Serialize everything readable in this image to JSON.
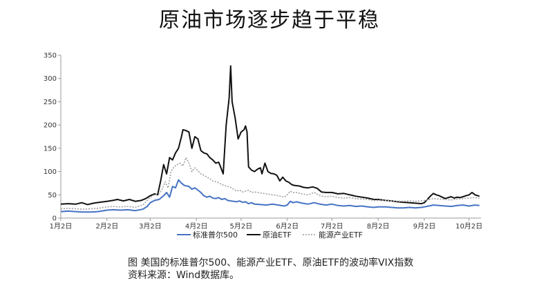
{
  "title": "原油市场逐步趋于平稳",
  "caption": {
    "line1": "图 美国的标准普尔500、能源产业ETF、原油ETF的波动率VIX指数",
    "line2": "资料来源：Wind数据库。"
  },
  "colors": {
    "sp500": "#4472C4",
    "oil": "#111111",
    "energy": "#A6A6A6",
    "axis": "#999999"
  },
  "chart_data": {
    "type": "line",
    "title": "",
    "xlabel": "",
    "ylabel": "",
    "xlim": [
      0,
      282
    ],
    "ylim": [
      0,
      350
    ],
    "yticks": [
      0,
      50,
      100,
      150,
      200,
      250,
      300,
      350
    ],
    "xticks": [
      {
        "pos": 0,
        "label": "1月2日"
      },
      {
        "pos": 31,
        "label": "2月2日"
      },
      {
        "pos": 60,
        "label": "3月2日"
      },
      {
        "pos": 91,
        "label": "4月2日"
      },
      {
        "pos": 121,
        "label": "5月2日"
      },
      {
        "pos": 152,
        "label": "6月2日"
      },
      {
        "pos": 182,
        "label": "7月2日"
      },
      {
        "pos": 213,
        "label": "8月2日"
      },
      {
        "pos": 244,
        "label": "9月2日"
      },
      {
        "pos": 274,
        "label": "10月2日"
      }
    ],
    "legend_position": "bottom",
    "grid": false,
    "series": [
      {
        "name": "标准普尔500",
        "style": "solid",
        "points": [
          [
            0,
            14
          ],
          [
            5,
            15
          ],
          [
            10,
            14
          ],
          [
            15,
            13
          ],
          [
            20,
            13
          ],
          [
            25,
            14
          ],
          [
            31,
            17
          ],
          [
            35,
            18
          ],
          [
            40,
            17
          ],
          [
            45,
            18
          ],
          [
            50,
            16
          ],
          [
            55,
            19
          ],
          [
            58,
            25
          ],
          [
            60,
            33
          ],
          [
            63,
            38
          ],
          [
            66,
            40
          ],
          [
            69,
            48
          ],
          [
            71,
            55
          ],
          [
            73,
            45
          ],
          [
            75,
            68
          ],
          [
            77,
            65
          ],
          [
            79,
            82
          ],
          [
            81,
            75
          ],
          [
            83,
            70
          ],
          [
            86,
            68
          ],
          [
            88,
            62
          ],
          [
            90,
            65
          ],
          [
            92,
            60
          ],
          [
            94,
            55
          ],
          [
            96,
            48
          ],
          [
            98,
            45
          ],
          [
            100,
            47
          ],
          [
            102,
            43
          ],
          [
            104,
            42
          ],
          [
            106,
            44
          ],
          [
            108,
            40
          ],
          [
            110,
            42
          ],
          [
            112,
            38
          ],
          [
            114,
            37
          ],
          [
            116,
            36
          ],
          [
            118,
            35
          ],
          [
            120,
            37
          ],
          [
            122,
            34
          ],
          [
            124,
            35
          ],
          [
            126,
            31
          ],
          [
            128,
            33
          ],
          [
            130,
            30
          ],
          [
            134,
            29
          ],
          [
            138,
            28
          ],
          [
            142,
            30
          ],
          [
            146,
            28
          ],
          [
            150,
            26
          ],
          [
            152,
            28
          ],
          [
            154,
            36
          ],
          [
            156,
            33
          ],
          [
            158,
            35
          ],
          [
            162,
            32
          ],
          [
            166,
            30
          ],
          [
            170,
            33
          ],
          [
            174,
            30
          ],
          [
            178,
            28
          ],
          [
            182,
            30
          ],
          [
            186,
            27
          ],
          [
            190,
            26
          ],
          [
            194,
            27
          ],
          [
            198,
            25
          ],
          [
            202,
            26
          ],
          [
            206,
            24
          ],
          [
            210,
            23
          ],
          [
            213,
            24
          ],
          [
            218,
            24
          ],
          [
            222,
            23
          ],
          [
            226,
            22
          ],
          [
            230,
            22
          ],
          [
            234,
            23
          ],
          [
            238,
            22
          ],
          [
            242,
            23
          ],
          [
            244,
            24
          ],
          [
            247,
            26
          ],
          [
            250,
            28
          ],
          [
            254,
            27
          ],
          [
            258,
            26
          ],
          [
            262,
            25
          ],
          [
            266,
            27
          ],
          [
            270,
            28
          ],
          [
            274,
            26
          ],
          [
            278,
            28
          ],
          [
            281,
            27
          ]
        ]
      },
      {
        "name": "原油ETF",
        "style": "solid",
        "points": [
          [
            0,
            30
          ],
          [
            5,
            31
          ],
          [
            10,
            30
          ],
          [
            14,
            33
          ],
          [
            18,
            29
          ],
          [
            22,
            32
          ],
          [
            26,
            34
          ],
          [
            31,
            36
          ],
          [
            35,
            38
          ],
          [
            38,
            40
          ],
          [
            42,
            37
          ],
          [
            46,
            40
          ],
          [
            50,
            36
          ],
          [
            54,
            38
          ],
          [
            57,
            42
          ],
          [
            60,
            48
          ],
          [
            63,
            52
          ],
          [
            65,
            50
          ],
          [
            67,
            80
          ],
          [
            69,
            115
          ],
          [
            71,
            95
          ],
          [
            73,
            130
          ],
          [
            75,
            125
          ],
          [
            77,
            140
          ],
          [
            79,
            150
          ],
          [
            81,
            175
          ],
          [
            82,
            190
          ],
          [
            84,
            188
          ],
          [
            86,
            185
          ],
          [
            88,
            150
          ],
          [
            90,
            175
          ],
          [
            92,
            170
          ],
          [
            94,
            145
          ],
          [
            96,
            140
          ],
          [
            98,
            138
          ],
          [
            100,
            130
          ],
          [
            102,
            125
          ],
          [
            104,
            118
          ],
          [
            106,
            120
          ],
          [
            107,
            112
          ],
          [
            109,
            95
          ],
          [
            111,
            200
          ],
          [
            113,
            258
          ],
          [
            114,
            327
          ],
          [
            115,
            250
          ],
          [
            117,
            215
          ],
          [
            119,
            170
          ],
          [
            121,
            185
          ],
          [
            123,
            190
          ],
          [
            124,
            198
          ],
          [
            125,
            185
          ],
          [
            126,
            110
          ],
          [
            128,
            103
          ],
          [
            130,
            100
          ],
          [
            132,
            105
          ],
          [
            134,
            108
          ],
          [
            135,
            95
          ],
          [
            137,
            118
          ],
          [
            139,
            100
          ],
          [
            141,
            96
          ],
          [
            143,
            95
          ],
          [
            145,
            92
          ],
          [
            147,
            80
          ],
          [
            149,
            88
          ],
          [
            151,
            80
          ],
          [
            153,
            77
          ],
          [
            155,
            72
          ],
          [
            157,
            70
          ],
          [
            160,
            69
          ],
          [
            163,
            66
          ],
          [
            166,
            65
          ],
          [
            169,
            67
          ],
          [
            172,
            64
          ],
          [
            175,
            56
          ],
          [
            178,
            55
          ],
          [
            182,
            55
          ],
          [
            186,
            52
          ],
          [
            190,
            53
          ],
          [
            194,
            50
          ],
          [
            198,
            47
          ],
          [
            202,
            45
          ],
          [
            206,
            43
          ],
          [
            210,
            40
          ],
          [
            213,
            40
          ],
          [
            218,
            38
          ],
          [
            222,
            37
          ],
          [
            226,
            35
          ],
          [
            230,
            34
          ],
          [
            234,
            33
          ],
          [
            238,
            32
          ],
          [
            242,
            31
          ],
          [
            244,
            33
          ],
          [
            246,
            40
          ],
          [
            248,
            47
          ],
          [
            250,
            53
          ],
          [
            252,
            50
          ],
          [
            254,
            48
          ],
          [
            256,
            45
          ],
          [
            258,
            42
          ],
          [
            260,
            44
          ],
          [
            262,
            46
          ],
          [
            264,
            43
          ],
          [
            266,
            45
          ],
          [
            268,
            44
          ],
          [
            270,
            46
          ],
          [
            272,
            48
          ],
          [
            274,
            50
          ],
          [
            276,
            55
          ],
          [
            278,
            50
          ],
          [
            281,
            47
          ]
        ]
      },
      {
        "name": "能源产业ETF",
        "style": "dotted",
        "points": [
          [
            0,
            20
          ],
          [
            5,
            21
          ],
          [
            10,
            20
          ],
          [
            15,
            19
          ],
          [
            20,
            20
          ],
          [
            25,
            21
          ],
          [
            31,
            24
          ],
          [
            35,
            25
          ],
          [
            40,
            24
          ],
          [
            45,
            25
          ],
          [
            50,
            23
          ],
          [
            55,
            28
          ],
          [
            58,
            38
          ],
          [
            60,
            45
          ],
          [
            63,
            50
          ],
          [
            66,
            52
          ],
          [
            68,
            62
          ],
          [
            70,
            78
          ],
          [
            72,
            65
          ],
          [
            74,
            100
          ],
          [
            76,
            110
          ],
          [
            78,
            115
          ],
          [
            80,
            118
          ],
          [
            82,
            112
          ],
          [
            84,
            130
          ],
          [
            86,
            118
          ],
          [
            88,
            100
          ],
          [
            90,
            108
          ],
          [
            92,
            102
          ],
          [
            94,
            95
          ],
          [
            96,
            92
          ],
          [
            98,
            88
          ],
          [
            100,
            85
          ],
          [
            102,
            80
          ],
          [
            104,
            78
          ],
          [
            106,
            76
          ],
          [
            108,
            72
          ],
          [
            110,
            70
          ],
          [
            112,
            68
          ],
          [
            114,
            66
          ],
          [
            116,
            62
          ],
          [
            118,
            58
          ],
          [
            120,
            60
          ],
          [
            122,
            56
          ],
          [
            124,
            58
          ],
          [
            126,
            60
          ],
          [
            128,
            55
          ],
          [
            130,
            56
          ],
          [
            134,
            54
          ],
          [
            138,
            52
          ],
          [
            142,
            50
          ],
          [
            146,
            48
          ],
          [
            150,
            45
          ],
          [
            152,
            50
          ],
          [
            154,
            58
          ],
          [
            156,
            55
          ],
          [
            158,
            55
          ],
          [
            162,
            52
          ],
          [
            166,
            50
          ],
          [
            170,
            55
          ],
          [
            174,
            48
          ],
          [
            178,
            46
          ],
          [
            182,
            47
          ],
          [
            186,
            44
          ],
          [
            190,
            43
          ],
          [
            194,
            44
          ],
          [
            198,
            42
          ],
          [
            202,
            41
          ],
          [
            206,
            40
          ],
          [
            210,
            38
          ],
          [
            213,
            38
          ],
          [
            218,
            38
          ],
          [
            222,
            37
          ],
          [
            226,
            36
          ],
          [
            230,
            36
          ],
          [
            234,
            37
          ],
          [
            238,
            36
          ],
          [
            242,
            37
          ],
          [
            244,
            38
          ],
          [
            247,
            40
          ],
          [
            250,
            42
          ],
          [
            254,
            41
          ],
          [
            258,
            40
          ],
          [
            262,
            39
          ],
          [
            266,
            41
          ],
          [
            270,
            42
          ],
          [
            274,
            43
          ],
          [
            278,
            44
          ],
          [
            281,
            43
          ]
        ]
      }
    ]
  }
}
